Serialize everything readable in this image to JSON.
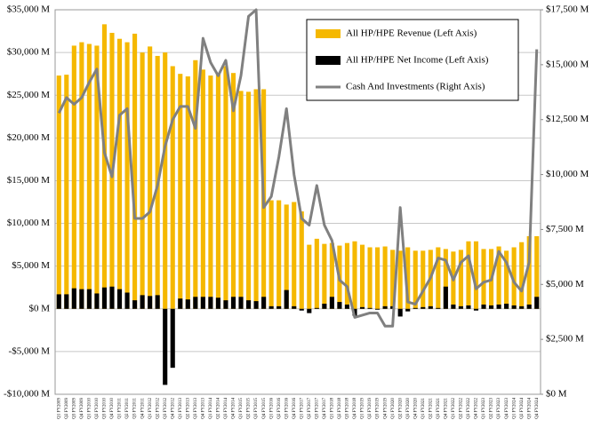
{
  "chart_data": {
    "type": "bar",
    "categories": [
      "Q1 FY2009",
      "Q2 FY2009",
      "Q3 FY2009",
      "Q4 FY2009",
      "Q1 FY2010",
      "Q2 FY2010",
      "Q3 FY2010",
      "Q4 FY2010",
      "Q1 FY2011",
      "Q2 FY2011",
      "Q3 FY2011",
      "Q4 FY2011",
      "Q1 FY2012",
      "Q2 FY2012",
      "Q3 FY2012",
      "Q4 FY2012",
      "Q1 FY2013",
      "Q2 FY2013",
      "Q3 FY2013",
      "Q4 FY2013",
      "Q1 FY2014",
      "Q2 FY2014",
      "Q3 FY2014",
      "Q4 FY2014",
      "Q1 FY2015",
      "Q2 FY2015",
      "Q3 FY2015",
      "Q4 FY2015",
      "Q1 FY2016",
      "Q2 FY2016",
      "Q3 FY2016",
      "Q4 FY2016",
      "Q1 FY2017",
      "Q2 FY2017",
      "Q3 FY2017",
      "Q4 FY2017",
      "Q1 FY2018",
      "Q2 FY2018",
      "Q3 FY2018",
      "Q4 FY2018",
      "Q1 FY2019",
      "Q2 FY2019",
      "Q3 FY2019",
      "Q4 FY2019",
      "Q1 FY2020",
      "Q2 FY2020",
      "Q3 FY2020",
      "Q4 FY2020",
      "Q1 FY2021",
      "Q2 FY2021",
      "Q3 FY2021",
      "Q4 FY2021",
      "Q1 FY2022",
      "Q2 FY2022",
      "Q3 FY2022",
      "Q4 FY2022",
      "Q1 FY2023",
      "Q2 FY2023",
      "Q3 FY2023",
      "Q4 FY2023",
      "Q1 FY2024",
      "Q2 FY2024",
      "Q3 FY2024",
      "Q4 FY2024"
    ],
    "series": [
      {
        "name": "All HP/HPE Revenue (Left Axis)",
        "color": "#f5b800",
        "values": [
          27300,
          27400,
          30800,
          31200,
          31000,
          30800,
          33300,
          32300,
          31600,
          31200,
          32200,
          30000,
          30700,
          29600,
          30000,
          28400,
          27500,
          27200,
          29100,
          28000,
          27300,
          27500,
          28400,
          27600,
          25500,
          25400,
          25700,
          25700,
          12700,
          12700,
          12200,
          12500,
          11400,
          7500,
          8200,
          7600,
          7700,
          7400,
          7700,
          7900,
          7500,
          7200,
          7200,
          7300,
          6900,
          6800,
          7200,
          6800,
          6800,
          6900,
          7200,
          7000,
          6700,
          6900,
          7900,
          7900,
          7000,
          7000,
          7300,
          6800,
          7200,
          7800,
          8500,
          8500
        ]
      },
      {
        "name": "All HP/HPE Net Income (Left Axis)",
        "color": "#000000",
        "values": [
          1700,
          1700,
          2400,
          2300,
          2300,
          1800,
          2500,
          2600,
          2300,
          1900,
          1000,
          1600,
          1500,
          1600,
          -8900,
          -6900,
          1200,
          1100,
          1400,
          1400,
          1400,
          1300,
          1000,
          1400,
          1400,
          1000,
          900,
          1400,
          300,
          300,
          2200,
          300,
          -200,
          -500,
          100,
          600,
          1400,
          800,
          500,
          -800,
          200,
          100,
          -100,
          300,
          300,
          -900,
          -300,
          100,
          200,
          300,
          100,
          2600,
          500,
          300,
          400,
          -200,
          500,
          400,
          500,
          600,
          400,
          300,
          500,
          1400
        ]
      },
      {
        "name": "Cash And Investments (Right Axis)",
        "color": "#808080",
        "type": "line",
        "axis": "y2",
        "values": [
          12800,
          13500,
          13200,
          13500,
          14200,
          14800,
          11000,
          9900,
          12700,
          13000,
          8000,
          8000,
          8300,
          9500,
          11300,
          12500,
          13100,
          13100,
          12100,
          16200,
          15100,
          14500,
          15200,
          12900,
          14500,
          17200,
          17500,
          8500,
          9000,
          10800,
          13000,
          10000,
          8000,
          7700,
          9500,
          7700,
          7000,
          5200,
          4900,
          3500,
          3600,
          3700,
          3700,
          3100,
          3100,
          8500,
          4200,
          4100,
          4700,
          5300,
          6200,
          6100,
          5200,
          6000,
          6300,
          4800,
          5100,
          5200,
          6500,
          6000,
          5100,
          4700,
          6000,
          15700
        ]
      }
    ],
    "ylim": [
      -10000,
      35000
    ],
    "yticks": [
      {
        "value": -10000,
        "label": "-$10,000 M"
      },
      {
        "value": -5000,
        "label": "-$5,000 M"
      },
      {
        "value": 0,
        "label": "$0 M"
      },
      {
        "value": 5000,
        "label": "$5,000 M"
      },
      {
        "value": 10000,
        "label": "$10,000 M"
      },
      {
        "value": 15000,
        "label": "$15,000 M"
      },
      {
        "value": 20000,
        "label": "$20,000 M"
      },
      {
        "value": 25000,
        "label": "$25,000 M"
      },
      {
        "value": 30000,
        "label": "$30,000 M"
      },
      {
        "value": 35000,
        "label": "$35,000 M"
      }
    ],
    "y2lim": [
      0,
      17500
    ],
    "y2ticks": [
      {
        "value": 0,
        "label": "$0 M"
      },
      {
        "value": 2500,
        "label": "$2,500 M"
      },
      {
        "value": 5000,
        "label": "$5,000 M"
      },
      {
        "value": 7500,
        "label": "$7,500 M"
      },
      {
        "value": 10000,
        "label": "$10,000 M"
      },
      {
        "value": 12500,
        "label": "$12,500 M"
      },
      {
        "value": 15000,
        "label": "$15,000 M"
      },
      {
        "value": 17500,
        "label": "$17,500 M"
      }
    ],
    "grid": true,
    "legend": "upper right"
  }
}
